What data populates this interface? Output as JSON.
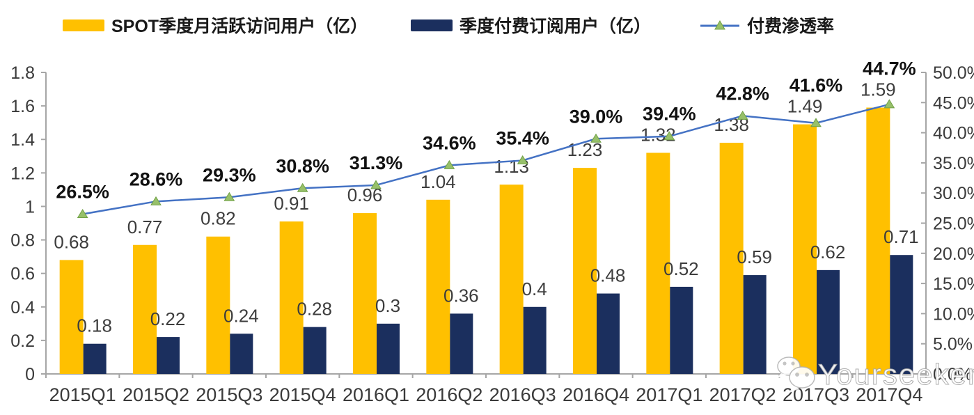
{
  "legend": {
    "items": [
      {
        "label": "SPOT季度月活跃访问用户（亿）",
        "symbol": "bar-swatch",
        "color": "#FFC000"
      },
      {
        "label": "季度付费订阅用户（亿）",
        "symbol": "bar-swatch",
        "color": "#1B2F5E"
      },
      {
        "label": "付费渗透率",
        "symbol": "line-with-triangle-marker",
        "color": "#4472C4",
        "marker_color": "#97C06A"
      }
    ]
  },
  "chart_data": {
    "type": "bar+line combo",
    "categories": [
      "2015Q1",
      "2015Q2",
      "2015Q3",
      "2015Q4",
      "2016Q1",
      "2016Q2",
      "2016Q3",
      "2016Q4",
      "2017Q1",
      "2017Q2",
      "2017Q3",
      "2017Q4"
    ],
    "series": [
      {
        "name": "SPOT季度月活跃访问用户（亿）",
        "type": "bar",
        "axis": "left",
        "color": "#FFC000",
        "values": [
          0.68,
          0.77,
          0.82,
          0.91,
          0.96,
          1.04,
          1.13,
          1.23,
          1.32,
          1.38,
          1.49,
          1.59
        ],
        "labels": [
          "0.68",
          "0.77",
          "0.82",
          "0.91",
          "0.96",
          "1.04",
          "1.13",
          "1.23",
          "1.32",
          "1.38",
          "1.49",
          "1.59"
        ]
      },
      {
        "name": "季度付费订阅用户（亿）",
        "type": "bar",
        "axis": "left",
        "color": "#1B2F5E",
        "values": [
          0.18,
          0.22,
          0.24,
          0.28,
          0.3,
          0.36,
          0.4,
          0.48,
          0.52,
          0.59,
          0.62,
          0.71
        ],
        "labels": [
          "0.18",
          "0.22",
          "0.24",
          "0.28",
          "0.3",
          "0.36",
          "0.4",
          "0.48",
          "0.52",
          "0.59",
          "0.62",
          "0.71"
        ]
      },
      {
        "name": "付费渗透率",
        "type": "line",
        "axis": "right",
        "color": "#4472C4",
        "marker": "triangle",
        "marker_fill": "#97C06A",
        "marker_stroke": "#71A146",
        "values": [
          26.5,
          28.6,
          29.3,
          30.8,
          31.3,
          34.6,
          35.4,
          39.0,
          39.4,
          42.8,
          41.6,
          44.7
        ],
        "labels": [
          "26.5%",
          "28.6%",
          "29.3%",
          "30.8%",
          "31.3%",
          "34.6%",
          "35.4%",
          "39.0%",
          "39.4%",
          "42.8%",
          "41.6%",
          "44.7%"
        ]
      }
    ],
    "left_axis": {
      "min": 0,
      "max": 1.8,
      "tick_labels": [
        "0",
        "0.2",
        "0.4",
        "0.6",
        "0.8",
        "1",
        "1.2",
        "1.4",
        "1.6",
        "1.8"
      ]
    },
    "right_axis": {
      "min": 0,
      "max": 50,
      "tick_labels": [
        "0.0%",
        "5.0%",
        "10.0%",
        "15.0%",
        "20.0%",
        "25.0%",
        "30.0%",
        "35.0%",
        "40.0%",
        "45.0%",
        "50.0%"
      ]
    },
    "grid": false,
    "legend_position": "top",
    "axis_line_color": "#A6A6A6",
    "tick_label_color": "#3a3a3a",
    "value_label_color": "#3d3d3d",
    "percent_label_color": "#111111"
  },
  "watermark": {
    "text": "Yourseeker",
    "icon": "wechat-icon"
  }
}
